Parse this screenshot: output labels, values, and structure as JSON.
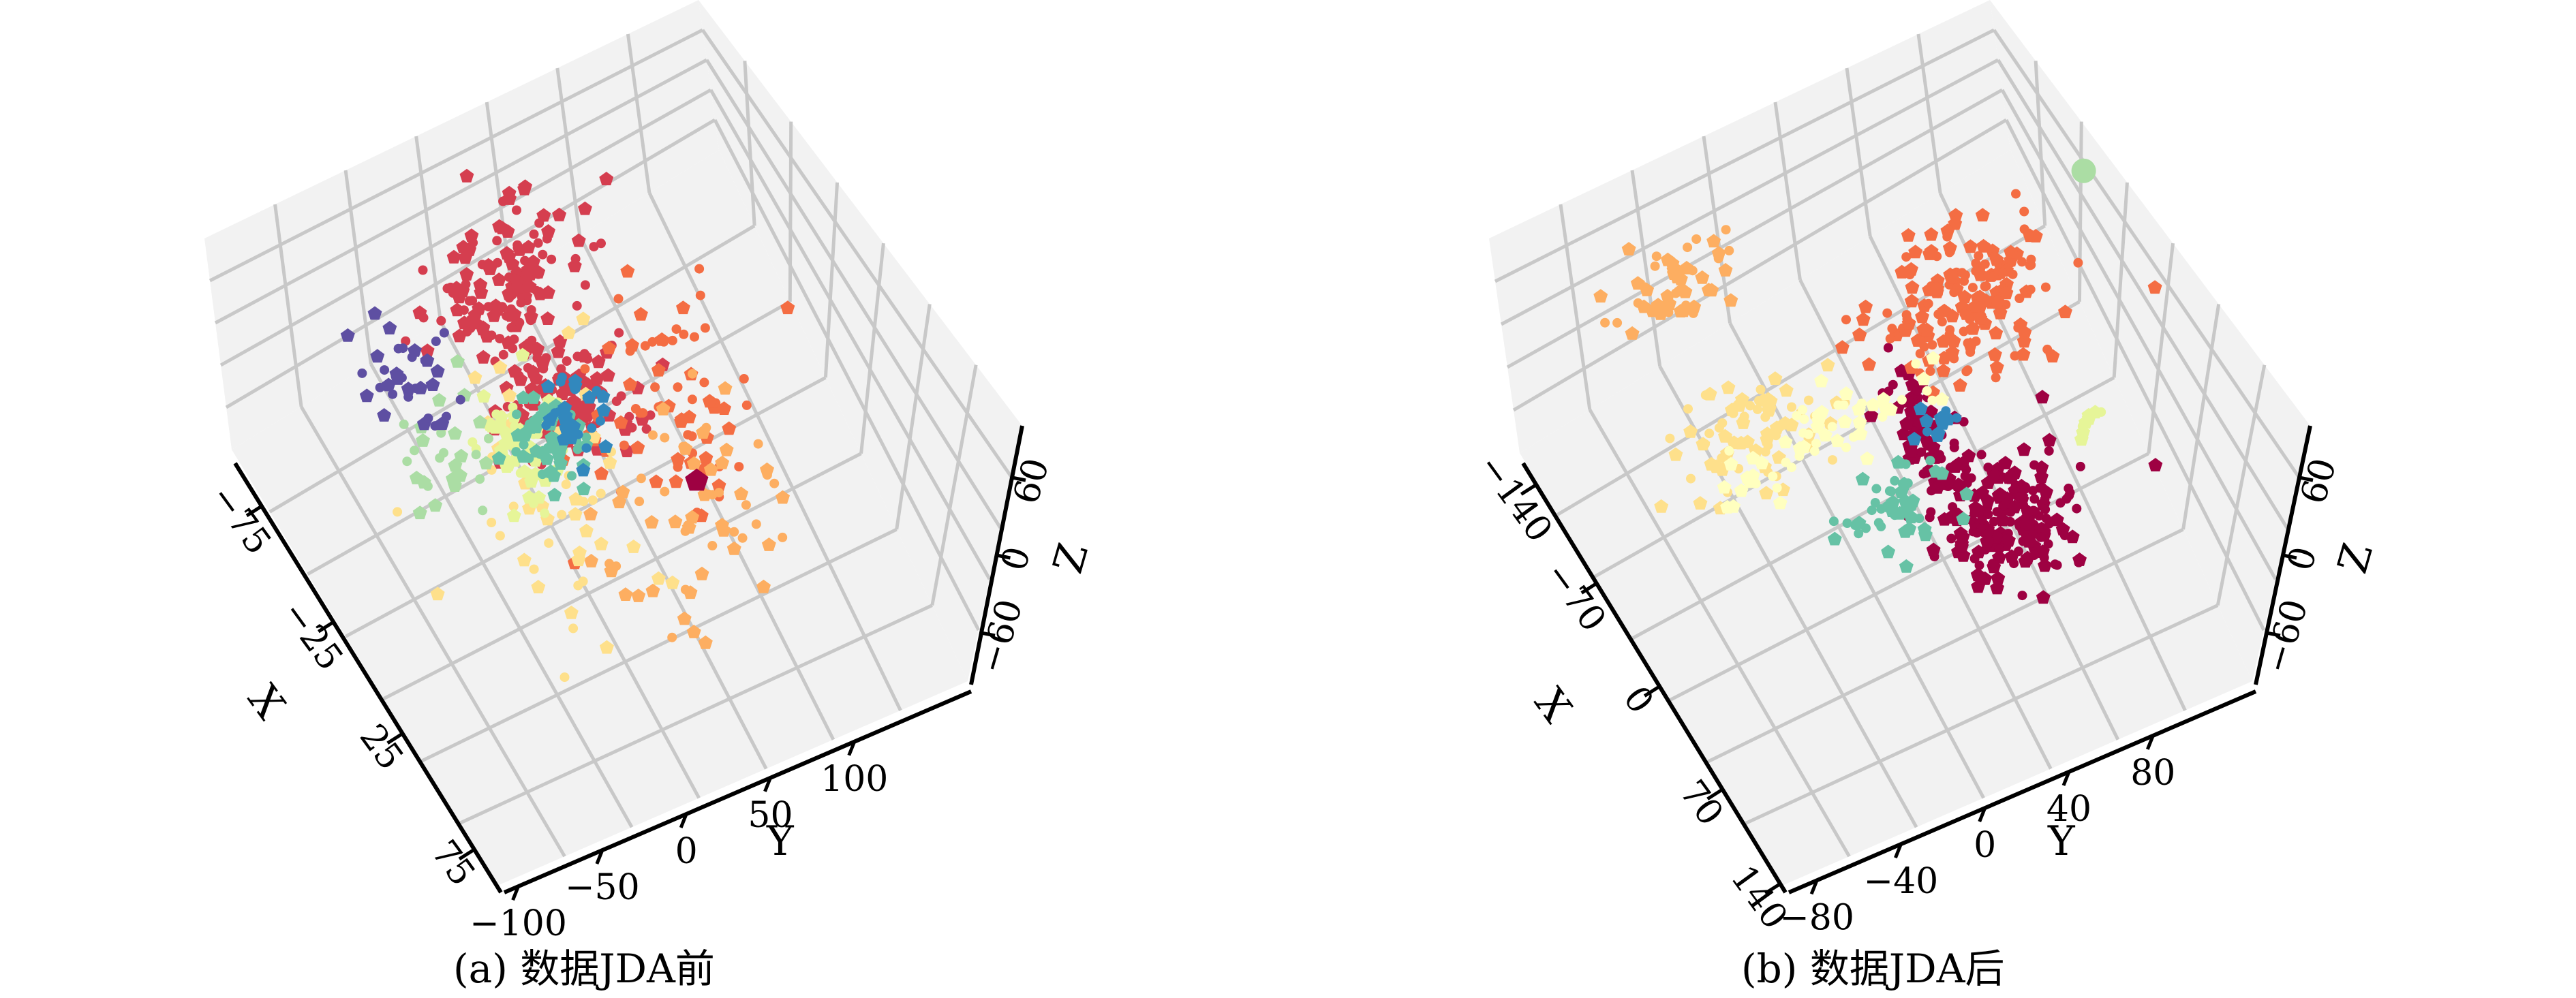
{
  "colors": {
    "grid": "#c8c8c8",
    "pane": "#f2f2f2",
    "axis": "#000000",
    "palette": [
      "#9e0142",
      "#d53e4f",
      "#f46d43",
      "#fdae61",
      "#fee08b",
      "#ffffbf",
      "#e6f598",
      "#abdda4",
      "#66c2a5",
      "#3288bd",
      "#5e4fa2"
    ]
  },
  "chart_data": [
    {
      "type": "scatter",
      "projection": "3d",
      "title": "",
      "caption": "(a) 数据JDA前",
      "xlabel": "X",
      "ylabel": "Y",
      "zlabel": "Z",
      "xticks": [
        "−75",
        "−25",
        "25",
        "75"
      ],
      "yticks": [
        "−100",
        "−50",
        "0",
        "50",
        "100"
      ],
      "zticks": [
        "−60",
        "0",
        "60"
      ],
      "xlim": [
        -100,
        100
      ],
      "ylim": [
        -120,
        120
      ],
      "zlim": [
        -100,
        100
      ],
      "grid": true,
      "marker_shapes": [
        "pentagon",
        "circle"
      ],
      "series": [
        {
          "color": "#d53e4f",
          "cluster": {
            "x": -45,
            "y": -20,
            "z": 30,
            "sx": 12,
            "sy": 18,
            "sz": 20,
            "n": 140
          }
        },
        {
          "color": "#d53e4f",
          "cluster": {
            "x": -10,
            "y": -10,
            "z": 0,
            "sx": 12,
            "sy": 14,
            "sz": 15,
            "n": 120
          }
        },
        {
          "color": "#f46d43",
          "cluster": {
            "x": 5,
            "y": 25,
            "z": 0,
            "sx": 18,
            "sy": 22,
            "sz": 20,
            "n": 70
          }
        },
        {
          "color": "#fdae61",
          "cluster": {
            "x": 40,
            "y": 20,
            "z": -20,
            "sx": 20,
            "sy": 25,
            "sz": 20,
            "n": 60
          }
        },
        {
          "color": "#fee08b",
          "cluster": {
            "x": 20,
            "y": -35,
            "z": -10,
            "sx": 25,
            "sy": 20,
            "sz": 25,
            "n": 55
          }
        },
        {
          "color": "#e6f598",
          "cluster": {
            "x": 0,
            "y": -40,
            "z": 0,
            "sx": 10,
            "sy": 10,
            "sz": 10,
            "n": 55
          }
        },
        {
          "color": "#66c2a5",
          "cluster": {
            "x": 0,
            "y": -30,
            "z": 0,
            "sx": 8,
            "sy": 10,
            "sz": 8,
            "n": 50
          }
        },
        {
          "color": "#abdda4",
          "cluster": {
            "x": -15,
            "y": -70,
            "z": 0,
            "sx": 12,
            "sy": 12,
            "sz": 12,
            "n": 30
          }
        },
        {
          "color": "#3288bd",
          "cluster": {
            "x": -5,
            "y": -10,
            "z": 0,
            "sx": 8,
            "sy": 8,
            "sz": 8,
            "n": 30
          }
        },
        {
          "color": "#5e4fa2",
          "cluster": {
            "x": -40,
            "y": -70,
            "z": 10,
            "sx": 12,
            "sy": 10,
            "sz": 15,
            "n": 35
          }
        },
        {
          "color": "#9e0142",
          "cluster": {
            "x": 40,
            "y": 20,
            "z": 0,
            "sx": 2,
            "sy": 2,
            "sz": 2,
            "n": 1
          }
        }
      ]
    },
    {
      "type": "scatter",
      "projection": "3d",
      "title": "",
      "caption": "(b) 数据JDA后",
      "xlabel": "X",
      "ylabel": "Y",
      "zlabel": "Z",
      "xticks": [
        "−140",
        "−70",
        "0",
        "70",
        "140"
      ],
      "yticks": [
        "−80",
        "−40",
        "0",
        "40",
        "80"
      ],
      "zticks": [
        "−60",
        "0",
        "60"
      ],
      "xlim": [
        -170,
        170
      ],
      "ylim": [
        -110,
        110
      ],
      "zlim": [
        -100,
        100
      ],
      "grid": true,
      "marker_shapes": [
        "pentagon",
        "circle"
      ],
      "series": [
        {
          "color": "#9e0142",
          "cluster": {
            "x": 90,
            "y": 25,
            "z": 0,
            "sx": 15,
            "sy": 15,
            "sz": 15,
            "n": 170
          }
        },
        {
          "color": "#9e0142",
          "cluster": {
            "x": 30,
            "y": 10,
            "z": 0,
            "sx": 25,
            "sy": 5,
            "sz": 10,
            "n": 80
          }
        },
        {
          "color": "#f46d43",
          "cluster": {
            "x": -40,
            "y": 50,
            "z": 0,
            "sx": 20,
            "sy": 20,
            "sz": 10,
            "n": 180
          }
        },
        {
          "color": "#fdae61",
          "cluster": {
            "x": -140,
            "y": -50,
            "z": 0,
            "sx": 10,
            "sy": 15,
            "sz": 10,
            "n": 50
          }
        },
        {
          "color": "#fee08b",
          "cluster": {
            "x": -30,
            "y": -55,
            "z": 0,
            "sx": 15,
            "sy": 15,
            "sz": 10,
            "n": 80
          }
        },
        {
          "color": "#ffffbf",
          "cluster": {
            "x": -10,
            "y": -25,
            "z": 0,
            "sx": 10,
            "sy": 25,
            "sz": 10,
            "n": 60
          }
        },
        {
          "color": "#66c2a5",
          "cluster": {
            "x": 55,
            "y": -15,
            "z": 0,
            "sx": 10,
            "sy": 12,
            "sz": 10,
            "n": 45
          }
        },
        {
          "color": "#3288bd",
          "cluster": {
            "x": 20,
            "y": 15,
            "z": 0,
            "sx": 5,
            "sy": 5,
            "sz": 5,
            "n": 12
          }
        },
        {
          "color": "#e6f598",
          "cluster": {
            "x": 60,
            "y": 70,
            "z": 0,
            "sx": 3,
            "sy": 3,
            "sz": 3,
            "n": 8
          }
        },
        {
          "color": "#abdda4",
          "cluster": {
            "x": -70,
            "y": 110,
            "z": 0,
            "sx": 2,
            "sy": 2,
            "sz": 2,
            "n": 1
          }
        }
      ]
    }
  ]
}
